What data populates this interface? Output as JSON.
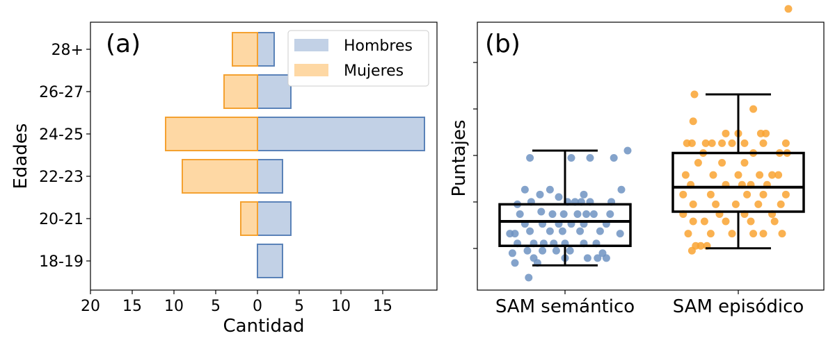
{
  "chart_data": [
    {
      "type": "bar",
      "orientation": "horizontal",
      "panel_label": "(a)",
      "xlabel": "Cantidad",
      "ylabel": "Edades",
      "categories": [
        "18-19",
        "20-21",
        "22-23",
        "24-25",
        "26-27",
        "28+"
      ],
      "x_ticks": [
        -20,
        -15,
        -10,
        -5,
        0,
        5,
        10,
        15
      ],
      "x_tick_labels": [
        "20",
        "15",
        "10",
        "5",
        "0",
        "5",
        "10",
        "15"
      ],
      "xlim": [
        -20,
        21.5
      ],
      "grid": false,
      "legend_position": "top-right",
      "series": [
        {
          "name": "Hombres",
          "values": [
            3,
            4,
            3,
            20,
            4,
            2
          ],
          "fill": "#c2d1e6",
          "stroke": "#5a82b8"
        },
        {
          "name": "Mujeres",
          "values": [
            0,
            2,
            9,
            11,
            4,
            3
          ],
          "fill": "#fed8a4",
          "stroke": "#f4a130",
          "direction": "negative"
        }
      ]
    },
    {
      "type": "box",
      "panel_label": "(b)",
      "ylabel": "Puntajes",
      "categories": [
        "SAM semántico",
        "SAM episódico"
      ],
      "ylim": [
        0,
        1
      ],
      "y_ticks_count": 5,
      "y_tick_labels_shown": false,
      "grid": false,
      "boxes": [
        {
          "name": "SAM semántico",
          "whisker_low": 0.05,
          "q1": 0.13,
          "median": 0.23,
          "q3": 0.3,
          "whisker_high": 0.52,
          "point_color": "#6f93c2"
        },
        {
          "name": "SAM episódico",
          "whisker_low": 0.12,
          "q1": 0.27,
          "median": 0.37,
          "q3": 0.51,
          "whisker_high": 0.75,
          "point_color": "#f9a331"
        }
      ],
      "points": [
        [
          [
            -0.28,
            0.49
          ],
          [
            0.05,
            0.49
          ],
          [
            0.2,
            0.49
          ],
          [
            0.39,
            0.49
          ],
          [
            0.5,
            0.52
          ],
          [
            -0.32,
            0.36
          ],
          [
            -0.12,
            0.36
          ],
          [
            0.45,
            0.36
          ],
          [
            -0.05,
            0.33
          ],
          [
            -0.2,
            0.34
          ],
          [
            0.15,
            0.34
          ],
          [
            -0.38,
            0.3
          ],
          [
            -0.27,
            0.31
          ],
          [
            0.02,
            0.31
          ],
          [
            0.08,
            0.31
          ],
          [
            0.13,
            0.31
          ],
          [
            0.2,
            0.31
          ],
          [
            0.37,
            0.31
          ],
          [
            -0.36,
            0.26
          ],
          [
            -0.19,
            0.27
          ],
          [
            -0.1,
            0.26
          ],
          [
            -0.01,
            0.26
          ],
          [
            0.1,
            0.26
          ],
          [
            0.17,
            0.26
          ],
          [
            0.23,
            0.26
          ],
          [
            -0.32,
            0.22
          ],
          [
            -0.18,
            0.22
          ],
          [
            -0.05,
            0.22
          ],
          [
            0.05,
            0.22
          ],
          [
            0.15,
            0.22
          ],
          [
            0.33,
            0.22
          ],
          [
            -0.28,
            0.19
          ],
          [
            -0.12,
            0.19
          ],
          [
            -0.02,
            0.19
          ],
          [
            0.12,
            0.19
          ],
          [
            0.28,
            0.19
          ],
          [
            0.36,
            0.26
          ],
          [
            -0.44,
            0.18
          ],
          [
            -0.4,
            0.18
          ],
          [
            0.44,
            0.18
          ],
          [
            -0.38,
            0.14
          ],
          [
            -0.25,
            0.14
          ],
          [
            -0.17,
            0.14
          ],
          [
            -0.09,
            0.14
          ],
          [
            0.0,
            0.14
          ],
          [
            0.15,
            0.14
          ],
          [
            0.25,
            0.14
          ],
          [
            -0.42,
            0.1
          ],
          [
            -0.3,
            0.11
          ],
          [
            -0.18,
            0.11
          ],
          [
            -0.07,
            0.11
          ],
          [
            0.04,
            0.11
          ],
          [
            -0.4,
            0.06
          ],
          [
            -0.22,
            0.06
          ],
          [
            -0.25,
            0.08
          ],
          [
            0.0,
            0.08
          ],
          [
            0.18,
            0.08
          ],
          [
            0.26,
            0.08
          ],
          [
            0.33,
            0.08
          ],
          [
            0.3,
            0.1
          ],
          [
            -0.29,
            0.0
          ]
        ],
        [
          [
            -0.35,
            0.75
          ],
          [
            0.4,
            1.1
          ],
          [
            0.12,
            0.69
          ],
          [
            -0.36,
            0.64
          ],
          [
            0.0,
            0.59
          ],
          [
            0.18,
            0.59
          ],
          [
            0.22,
            0.59
          ],
          [
            -0.1,
            0.59
          ],
          [
            -0.41,
            0.55
          ],
          [
            -0.37,
            0.55
          ],
          [
            -0.26,
            0.55
          ],
          [
            -0.21,
            0.55
          ],
          [
            -0.13,
            0.55
          ],
          [
            -0.05,
            0.55
          ],
          [
            0.05,
            0.55
          ],
          [
            0.2,
            0.55
          ],
          [
            0.38,
            0.55
          ],
          [
            -0.28,
            0.51
          ],
          [
            0.12,
            0.51
          ],
          [
            0.33,
            0.51
          ],
          [
            0.39,
            0.51
          ],
          [
            -0.32,
            0.47
          ],
          [
            -0.13,
            0.47
          ],
          [
            0.05,
            0.47
          ],
          [
            -0.42,
            0.42
          ],
          [
            -0.2,
            0.42
          ],
          [
            0.0,
            0.42
          ],
          [
            0.17,
            0.42
          ],
          [
            0.27,
            0.42
          ],
          [
            0.32,
            0.42
          ],
          [
            -0.38,
            0.38
          ],
          [
            -0.1,
            0.38
          ],
          [
            0.03,
            0.38
          ],
          [
            0.1,
            0.38
          ],
          [
            0.23,
            0.38
          ],
          [
            -0.44,
            0.34
          ],
          [
            -0.22,
            0.34
          ],
          [
            0.07,
            0.34
          ],
          [
            0.2,
            0.34
          ],
          [
            0.38,
            0.34
          ],
          [
            -0.36,
            0.3
          ],
          [
            -0.18,
            0.3
          ],
          [
            -0.02,
            0.3
          ],
          [
            0.16,
            0.3
          ],
          [
            0.34,
            0.3
          ],
          [
            -0.44,
            0.26
          ],
          [
            -0.15,
            0.26
          ],
          [
            0.05,
            0.26
          ],
          [
            0.27,
            0.26
          ],
          [
            -0.36,
            0.23
          ],
          [
            -0.27,
            0.23
          ],
          [
            -0.1,
            0.23
          ],
          [
            0.1,
            0.23
          ],
          [
            0.29,
            0.23
          ],
          [
            -0.4,
            0.18
          ],
          [
            -0.22,
            0.18
          ],
          [
            -0.05,
            0.18
          ],
          [
            0.12,
            0.18
          ],
          [
            0.2,
            0.18
          ],
          [
            0.35,
            0.18
          ],
          [
            -0.34,
            0.13
          ],
          [
            -0.3,
            0.13
          ],
          [
            -0.25,
            0.13
          ],
          [
            -0.37,
            0.11
          ]
        ]
      ]
    }
  ]
}
